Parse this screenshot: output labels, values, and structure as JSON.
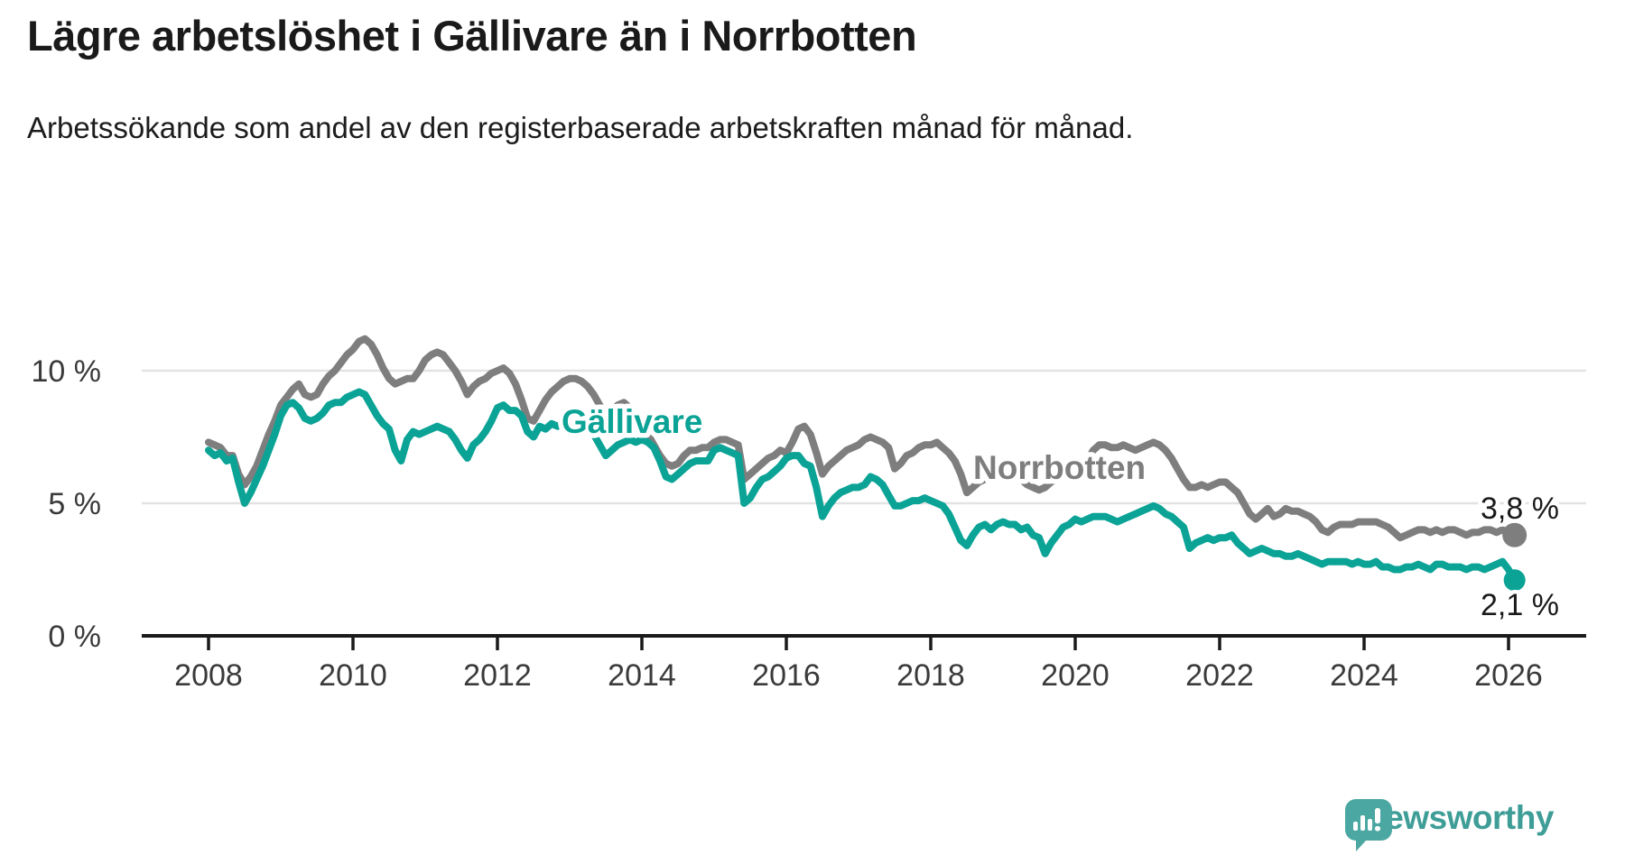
{
  "title": "Lägre arbetslöshet i Gällivare än i Norrbotten",
  "subtitle": "Arbetssökande som andel av den registerbaserade arbetskraften månad för månad.",
  "logo": {
    "wordmark": "Newsworthy",
    "icon": "bar-chart-speech-bubble-icon",
    "color": "#3f9d97",
    "icon_color": "#4ba7a1"
  },
  "chart_data": {
    "type": "line",
    "unit": "%",
    "frequency": "monthly",
    "x_start": {
      "year": 2008,
      "month": 1
    },
    "x_end": {
      "year": 2026,
      "month": 2
    },
    "xlim": [
      2008,
      2026.35
    ],
    "ylim": [
      0,
      12.3
    ],
    "grid": "horizontal",
    "x_ticks": [
      "2008",
      "2010",
      "2012",
      "2014",
      "2016",
      "2018",
      "2020",
      "2022",
      "2024",
      "2026"
    ],
    "y_ticks": [
      {
        "value": 0,
        "label": "0 %"
      },
      {
        "value": 5,
        "label": "5 %"
      },
      {
        "value": 10,
        "label": "10 %"
      }
    ],
    "series": [
      {
        "name": "Norrbotten",
        "color": "#7e7e7e",
        "end_label": "3,8 %",
        "last_value": 3.8,
        "values": [
          7.3,
          7.2,
          7.1,
          6.8,
          6.8,
          6.1,
          5.7,
          6.0,
          6.4,
          7.0,
          7.6,
          8.1,
          8.7,
          9.0,
          9.3,
          9.5,
          9.1,
          9.0,
          9.1,
          9.5,
          9.8,
          10.0,
          10.3,
          10.6,
          10.8,
          11.1,
          11.2,
          11.0,
          10.6,
          10.1,
          9.7,
          9.5,
          9.6,
          9.7,
          9.7,
          10.0,
          10.4,
          10.6,
          10.7,
          10.6,
          10.3,
          10.0,
          9.6,
          9.1,
          9.4,
          9.6,
          9.7,
          9.9,
          10.0,
          10.1,
          9.9,
          9.5,
          8.9,
          8.2,
          8.1,
          8.5,
          8.9,
          9.2,
          9.4,
          9.6,
          9.7,
          9.7,
          9.6,
          9.4,
          9.1,
          8.7,
          8.3,
          8.5,
          8.7,
          8.8,
          8.6,
          8.3,
          8.0,
          7.6,
          7.2,
          6.8,
          6.5,
          6.4,
          6.5,
          6.8,
          7.0,
          7.0,
          7.1,
          7.1,
          7.3,
          7.4,
          7.4,
          7.3,
          7.2,
          5.9,
          6.1,
          6.3,
          6.5,
          6.7,
          6.8,
          7.0,
          6.9,
          7.3,
          7.8,
          7.9,
          7.6,
          6.9,
          6.1,
          6.4,
          6.6,
          6.8,
          7.0,
          7.1,
          7.2,
          7.4,
          7.5,
          7.4,
          7.3,
          7.1,
          6.3,
          6.5,
          6.8,
          6.9,
          7.1,
          7.2,
          7.2,
          7.3,
          7.1,
          6.9,
          6.6,
          6.1,
          5.4,
          5.6,
          5.8,
          5.9,
          6.0,
          6.1,
          6.2,
          6.2,
          6.1,
          5.9,
          5.7,
          5.6,
          5.5,
          5.6,
          5.8,
          5.9,
          6.0,
          6.1,
          6.2,
          6.3,
          6.6,
          7.0,
          7.2,
          7.2,
          7.1,
          7.1,
          7.2,
          7.1,
          7.0,
          7.1,
          7.2,
          7.3,
          7.2,
          7.0,
          6.7,
          6.3,
          5.9,
          5.6,
          5.6,
          5.7,
          5.6,
          5.7,
          5.8,
          5.8,
          5.6,
          5.4,
          5.0,
          4.6,
          4.4,
          4.6,
          4.8,
          4.5,
          4.6,
          4.8,
          4.7,
          4.7,
          4.6,
          4.5,
          4.3,
          4.0,
          3.9,
          4.1,
          4.2,
          4.2,
          4.2,
          4.3,
          4.3,
          4.3,
          4.3,
          4.2,
          4.1,
          3.9,
          3.7,
          3.8,
          3.9,
          4.0,
          4.0,
          3.9,
          4.0,
          3.9,
          4.0,
          4.0,
          3.9,
          3.8,
          3.9,
          3.9,
          4.0,
          4.0,
          3.9,
          4.0,
          3.9,
          3.8
        ]
      },
      {
        "name": "Gällivare",
        "color": "#0aa396",
        "end_label": "2,1 %",
        "last_value": 2.1,
        "values": [
          7.0,
          6.8,
          6.9,
          6.6,
          6.7,
          5.8,
          5.0,
          5.4,
          5.9,
          6.4,
          7.0,
          7.6,
          8.3,
          8.7,
          8.8,
          8.6,
          8.2,
          8.1,
          8.2,
          8.4,
          8.7,
          8.8,
          8.8,
          9.0,
          9.1,
          9.2,
          9.1,
          8.7,
          8.3,
          8.0,
          7.8,
          7.0,
          6.6,
          7.4,
          7.7,
          7.6,
          7.7,
          7.8,
          7.9,
          7.8,
          7.7,
          7.4,
          7.0,
          6.7,
          7.2,
          7.4,
          7.7,
          8.1,
          8.6,
          8.7,
          8.5,
          8.5,
          8.3,
          7.7,
          7.5,
          7.9,
          7.8,
          8.0,
          7.9,
          8.0,
          8.0,
          8.1,
          8.0,
          7.9,
          7.6,
          7.2,
          6.8,
          7.0,
          7.2,
          7.3,
          7.4,
          7.3,
          7.4,
          7.3,
          7.1,
          6.6,
          6.0,
          5.9,
          6.1,
          6.3,
          6.5,
          6.6,
          6.6,
          6.6,
          7.0,
          7.1,
          7.0,
          6.9,
          6.8,
          5.0,
          5.2,
          5.6,
          5.9,
          6.0,
          6.2,
          6.4,
          6.7,
          6.8,
          6.8,
          6.5,
          6.4,
          5.6,
          4.5,
          4.9,
          5.2,
          5.4,
          5.5,
          5.6,
          5.6,
          5.7,
          6.0,
          5.9,
          5.7,
          5.3,
          4.9,
          4.9,
          5.0,
          5.1,
          5.1,
          5.2,
          5.1,
          5.0,
          4.9,
          4.6,
          4.1,
          3.6,
          3.4,
          3.8,
          4.1,
          4.2,
          4.0,
          4.2,
          4.3,
          4.2,
          4.2,
          4.0,
          4.1,
          3.8,
          3.7,
          3.1,
          3.5,
          3.8,
          4.1,
          4.2,
          4.4,
          4.3,
          4.4,
          4.5,
          4.5,
          4.5,
          4.4,
          4.3,
          4.4,
          4.5,
          4.6,
          4.7,
          4.8,
          4.9,
          4.8,
          4.6,
          4.5,
          4.3,
          4.1,
          3.3,
          3.5,
          3.6,
          3.7,
          3.6,
          3.7,
          3.7,
          3.8,
          3.5,
          3.3,
          3.1,
          3.2,
          3.3,
          3.2,
          3.1,
          3.1,
          3.0,
          3.0,
          3.1,
          3.0,
          2.9,
          2.8,
          2.7,
          2.8,
          2.8,
          2.8,
          2.8,
          2.7,
          2.8,
          2.7,
          2.7,
          2.8,
          2.6,
          2.6,
          2.5,
          2.5,
          2.6,
          2.6,
          2.7,
          2.6,
          2.5,
          2.7,
          2.7,
          2.6,
          2.6,
          2.6,
          2.5,
          2.6,
          2.6,
          2.5,
          2.6,
          2.7,
          2.8,
          2.5,
          2.1
        ]
      }
    ]
  }
}
